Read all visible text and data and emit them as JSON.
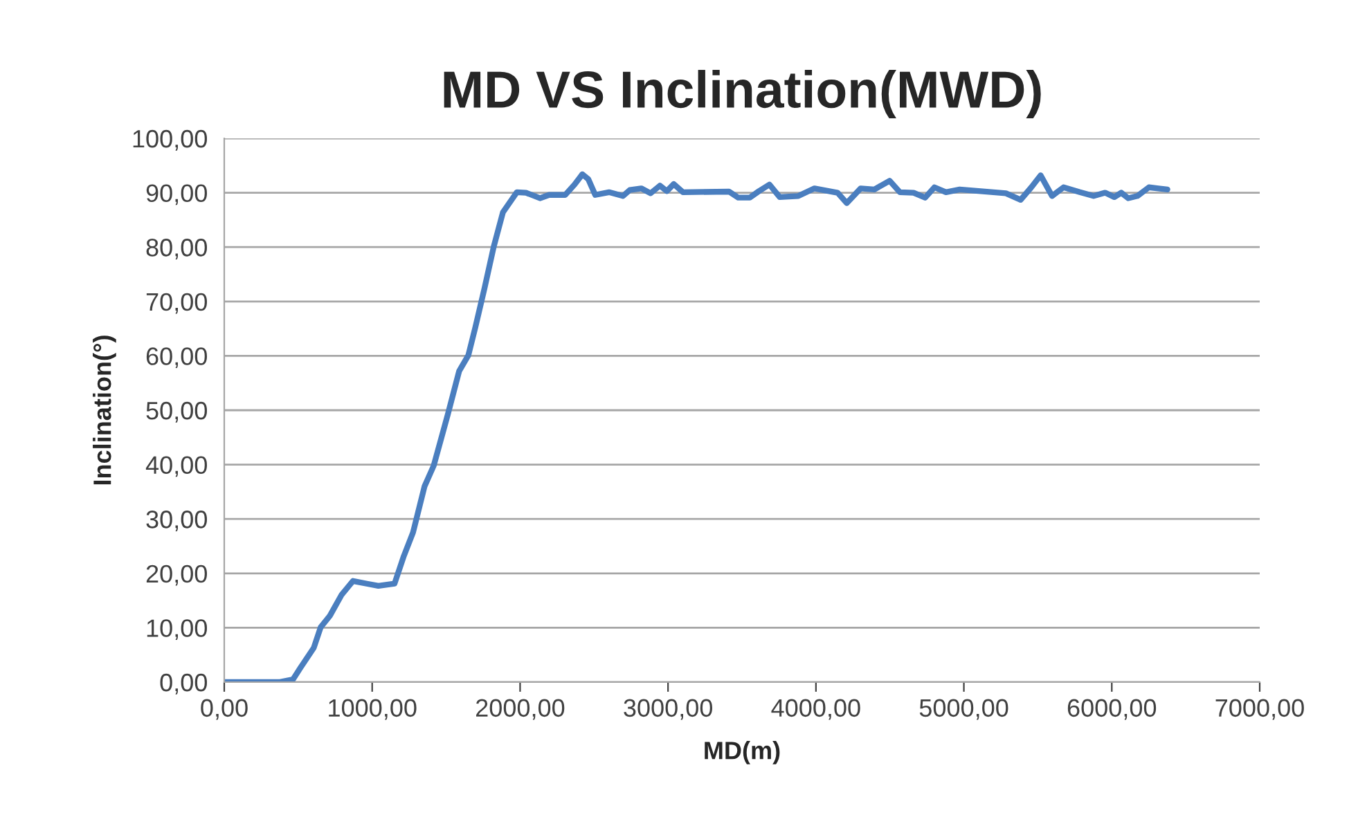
{
  "chart_data": {
    "type": "line",
    "title": "MD VS Inclination(MWD)",
    "xlabel": "MD(m)",
    "ylabel": "Inclination(°)",
    "series": [
      {
        "color": "#4a7ebf",
        "x": [
          0,
          371,
          465,
          512,
          605,
          652,
          714,
          792,
          870,
          964,
          1042,
          1151,
          1214,
          1276,
          1354,
          1416,
          1510,
          1588,
          1650,
          1697,
          1759,
          1822,
          1884,
          1978,
          2040,
          2134,
          2196,
          2305,
          2368,
          2421,
          2461,
          2508,
          2601,
          2695,
          2742,
          2819,
          2882,
          2945,
          2992,
          3039,
          3101,
          3413,
          3475,
          3553,
          3615,
          3686,
          3755,
          3881,
          3990,
          4146,
          4208,
          4302,
          4395,
          4498,
          4567,
          4660,
          4738,
          4801,
          4879,
          4972,
          5284,
          5384,
          5456,
          5519,
          5596,
          5674,
          5784,
          5877,
          5955,
          6017,
          6064,
          6111,
          6173,
          6251,
          6314,
          6376
        ],
        "values": [
          0,
          0,
          0.5,
          2.5,
          6.3,
          10.1,
          12.2,
          16.0,
          18.6,
          18.1,
          17.7,
          18.1,
          23.2,
          27.5,
          36.0,
          39.8,
          49.1,
          57.2,
          60.1,
          65.2,
          72.4,
          80.1,
          86.4,
          90.1,
          90.0,
          89.0,
          89.6,
          89.6,
          91.5,
          93.4,
          92.5,
          89.6,
          90.1,
          89.4,
          90.5,
          90.8,
          89.9,
          91.3,
          90.3,
          91.6,
          90.1,
          90.2,
          89.1,
          89.1,
          90.3,
          91.5,
          89.2,
          89.4,
          90.8,
          90.0,
          88.1,
          90.8,
          90.6,
          92.2,
          90.1,
          90.0,
          89.1,
          91.0,
          90.1,
          90.6,
          89.9,
          88.7,
          91.0,
          93.2,
          89.4,
          91.0,
          90.1,
          89.4,
          90.0,
          89.2,
          90.0,
          89.0,
          89.4,
          91.0,
          90.8,
          90.6
        ]
      }
    ],
    "xlim": [
      0,
      7000
    ],
    "xticks": [
      {
        "value": 0,
        "label": "0,00"
      },
      {
        "value": 1000,
        "label": "1000,00"
      },
      {
        "value": 2000,
        "label": "2000,00"
      },
      {
        "value": 3000,
        "label": "3000,00"
      },
      {
        "value": 4000,
        "label": "4000,00"
      },
      {
        "value": 5000,
        "label": "5000,00"
      },
      {
        "value": 6000,
        "label": "6000,00"
      },
      {
        "value": 7000,
        "label": "7000,00"
      }
    ],
    "ylim": [
      0,
      100
    ],
    "yticks": [
      {
        "value": 0,
        "label": "0,00"
      },
      {
        "value": 10,
        "label": "10,00"
      },
      {
        "value": 20,
        "label": "20,00"
      },
      {
        "value": 30,
        "label": "30,00"
      },
      {
        "value": 40,
        "label": "40,00"
      },
      {
        "value": 50,
        "label": "50,00"
      },
      {
        "value": 60,
        "label": "60,00"
      },
      {
        "value": 70,
        "label": "70,00"
      },
      {
        "value": 80,
        "label": "80,00"
      },
      {
        "value": 90,
        "label": "90,00"
      },
      {
        "value": 100,
        "label": "100,00"
      }
    ],
    "grid": "y",
    "legend": false,
    "marker": "none",
    "line_style": "solid"
  }
}
